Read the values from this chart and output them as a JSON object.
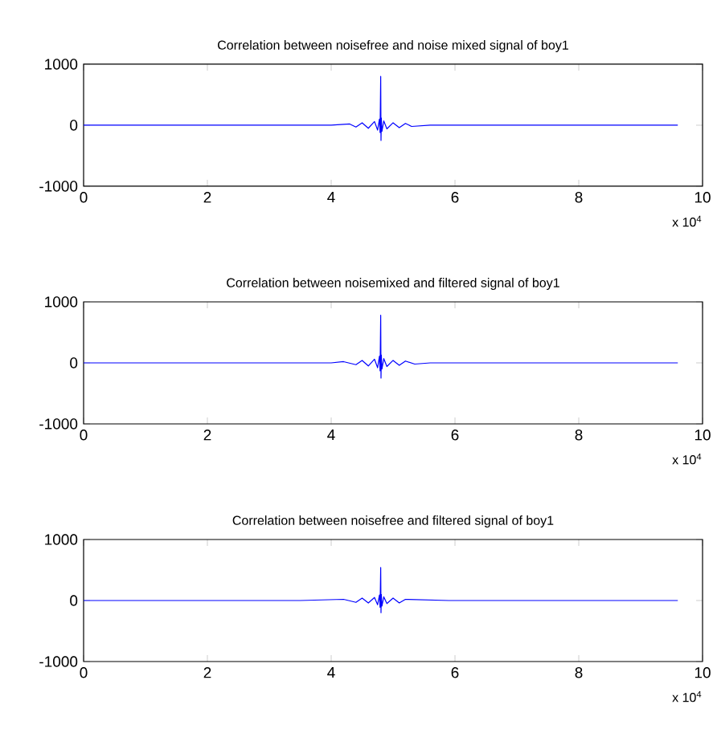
{
  "chart_data": [
    {
      "type": "line",
      "title": "Correlation between noisefree and noise mixed signal of boy1",
      "annotations": [
        "x 10$^{4}$"
      ],
      "xlim": [
        0,
        10
      ],
      "ylim": [
        -1000,
        1000
      ],
      "xticks": [
        0,
        2,
        4,
        6,
        8,
        10
      ],
      "yticks": [
        -1000,
        0,
        1000
      ],
      "grid": false,
      "series": [
        {
          "color": "#0000ff",
          "x": [
            0,
            2,
            4,
            4.3,
            4.4,
            4.5,
            4.6,
            4.7,
            4.75,
            4.78,
            4.79,
            4.8,
            4.805,
            4.81,
            4.82,
            4.85,
            4.9,
            5,
            5.1,
            5.2,
            5.3,
            5.6,
            7.6,
            9.6
          ],
          "values": [
            0,
            0,
            0,
            20,
            -30,
            40,
            -50,
            60,
            -80,
            100,
            -120,
            800,
            -250,
            120,
            -100,
            70,
            -60,
            40,
            -40,
            30,
            -20,
            0,
            0,
            0
          ]
        }
      ]
    },
    {
      "type": "line",
      "title": "Correlation between noisemixed and filtered signal of boy1",
      "annotations": [
        "x 10$^{4}$"
      ],
      "xlim": [
        0,
        10
      ],
      "ylim": [
        -1000,
        1000
      ],
      "xticks": [
        0,
        2,
        4,
        6,
        8,
        10
      ],
      "yticks": [
        -1000,
        0,
        1000
      ],
      "grid": false,
      "series": [
        {
          "color": "#0000ff",
          "x": [
            0,
            2,
            4,
            4.2,
            4.4,
            4.5,
            4.6,
            4.7,
            4.75,
            4.78,
            4.79,
            4.8,
            4.805,
            4.81,
            4.82,
            4.85,
            4.9,
            5,
            5.1,
            5.2,
            5.35,
            5.6,
            7.6,
            9.6
          ],
          "values": [
            0,
            0,
            0,
            20,
            -30,
            40,
            -50,
            60,
            -80,
            110,
            -130,
            780,
            -250,
            130,
            -100,
            70,
            -60,
            40,
            -40,
            30,
            -20,
            0,
            0,
            0
          ]
        }
      ]
    },
    {
      "type": "line",
      "title": "Correlation between noisefree and filtered signal of boy1",
      "annotations": [
        "x 10$^{4}$"
      ],
      "xlim": [
        0,
        10
      ],
      "ylim": [
        -1000,
        1000
      ],
      "xticks": [
        0,
        2,
        4,
        6,
        8,
        10
      ],
      "yticks": [
        -1000,
        0,
        1000
      ],
      "grid": false,
      "series": [
        {
          "color": "#0000ff",
          "x": [
            0,
            2,
            3.5,
            4.2,
            4.4,
            4.5,
            4.6,
            4.7,
            4.75,
            4.78,
            4.79,
            4.8,
            4.805,
            4.81,
            4.82,
            4.85,
            4.9,
            5,
            5.1,
            5.2,
            5.9,
            7.6,
            9.6
          ],
          "values": [
            0,
            0,
            0,
            20,
            -30,
            40,
            -40,
            50,
            -70,
            90,
            -110,
            540,
            -200,
            100,
            -90,
            60,
            -50,
            40,
            -40,
            20,
            0,
            0,
            0
          ]
        }
      ]
    }
  ]
}
